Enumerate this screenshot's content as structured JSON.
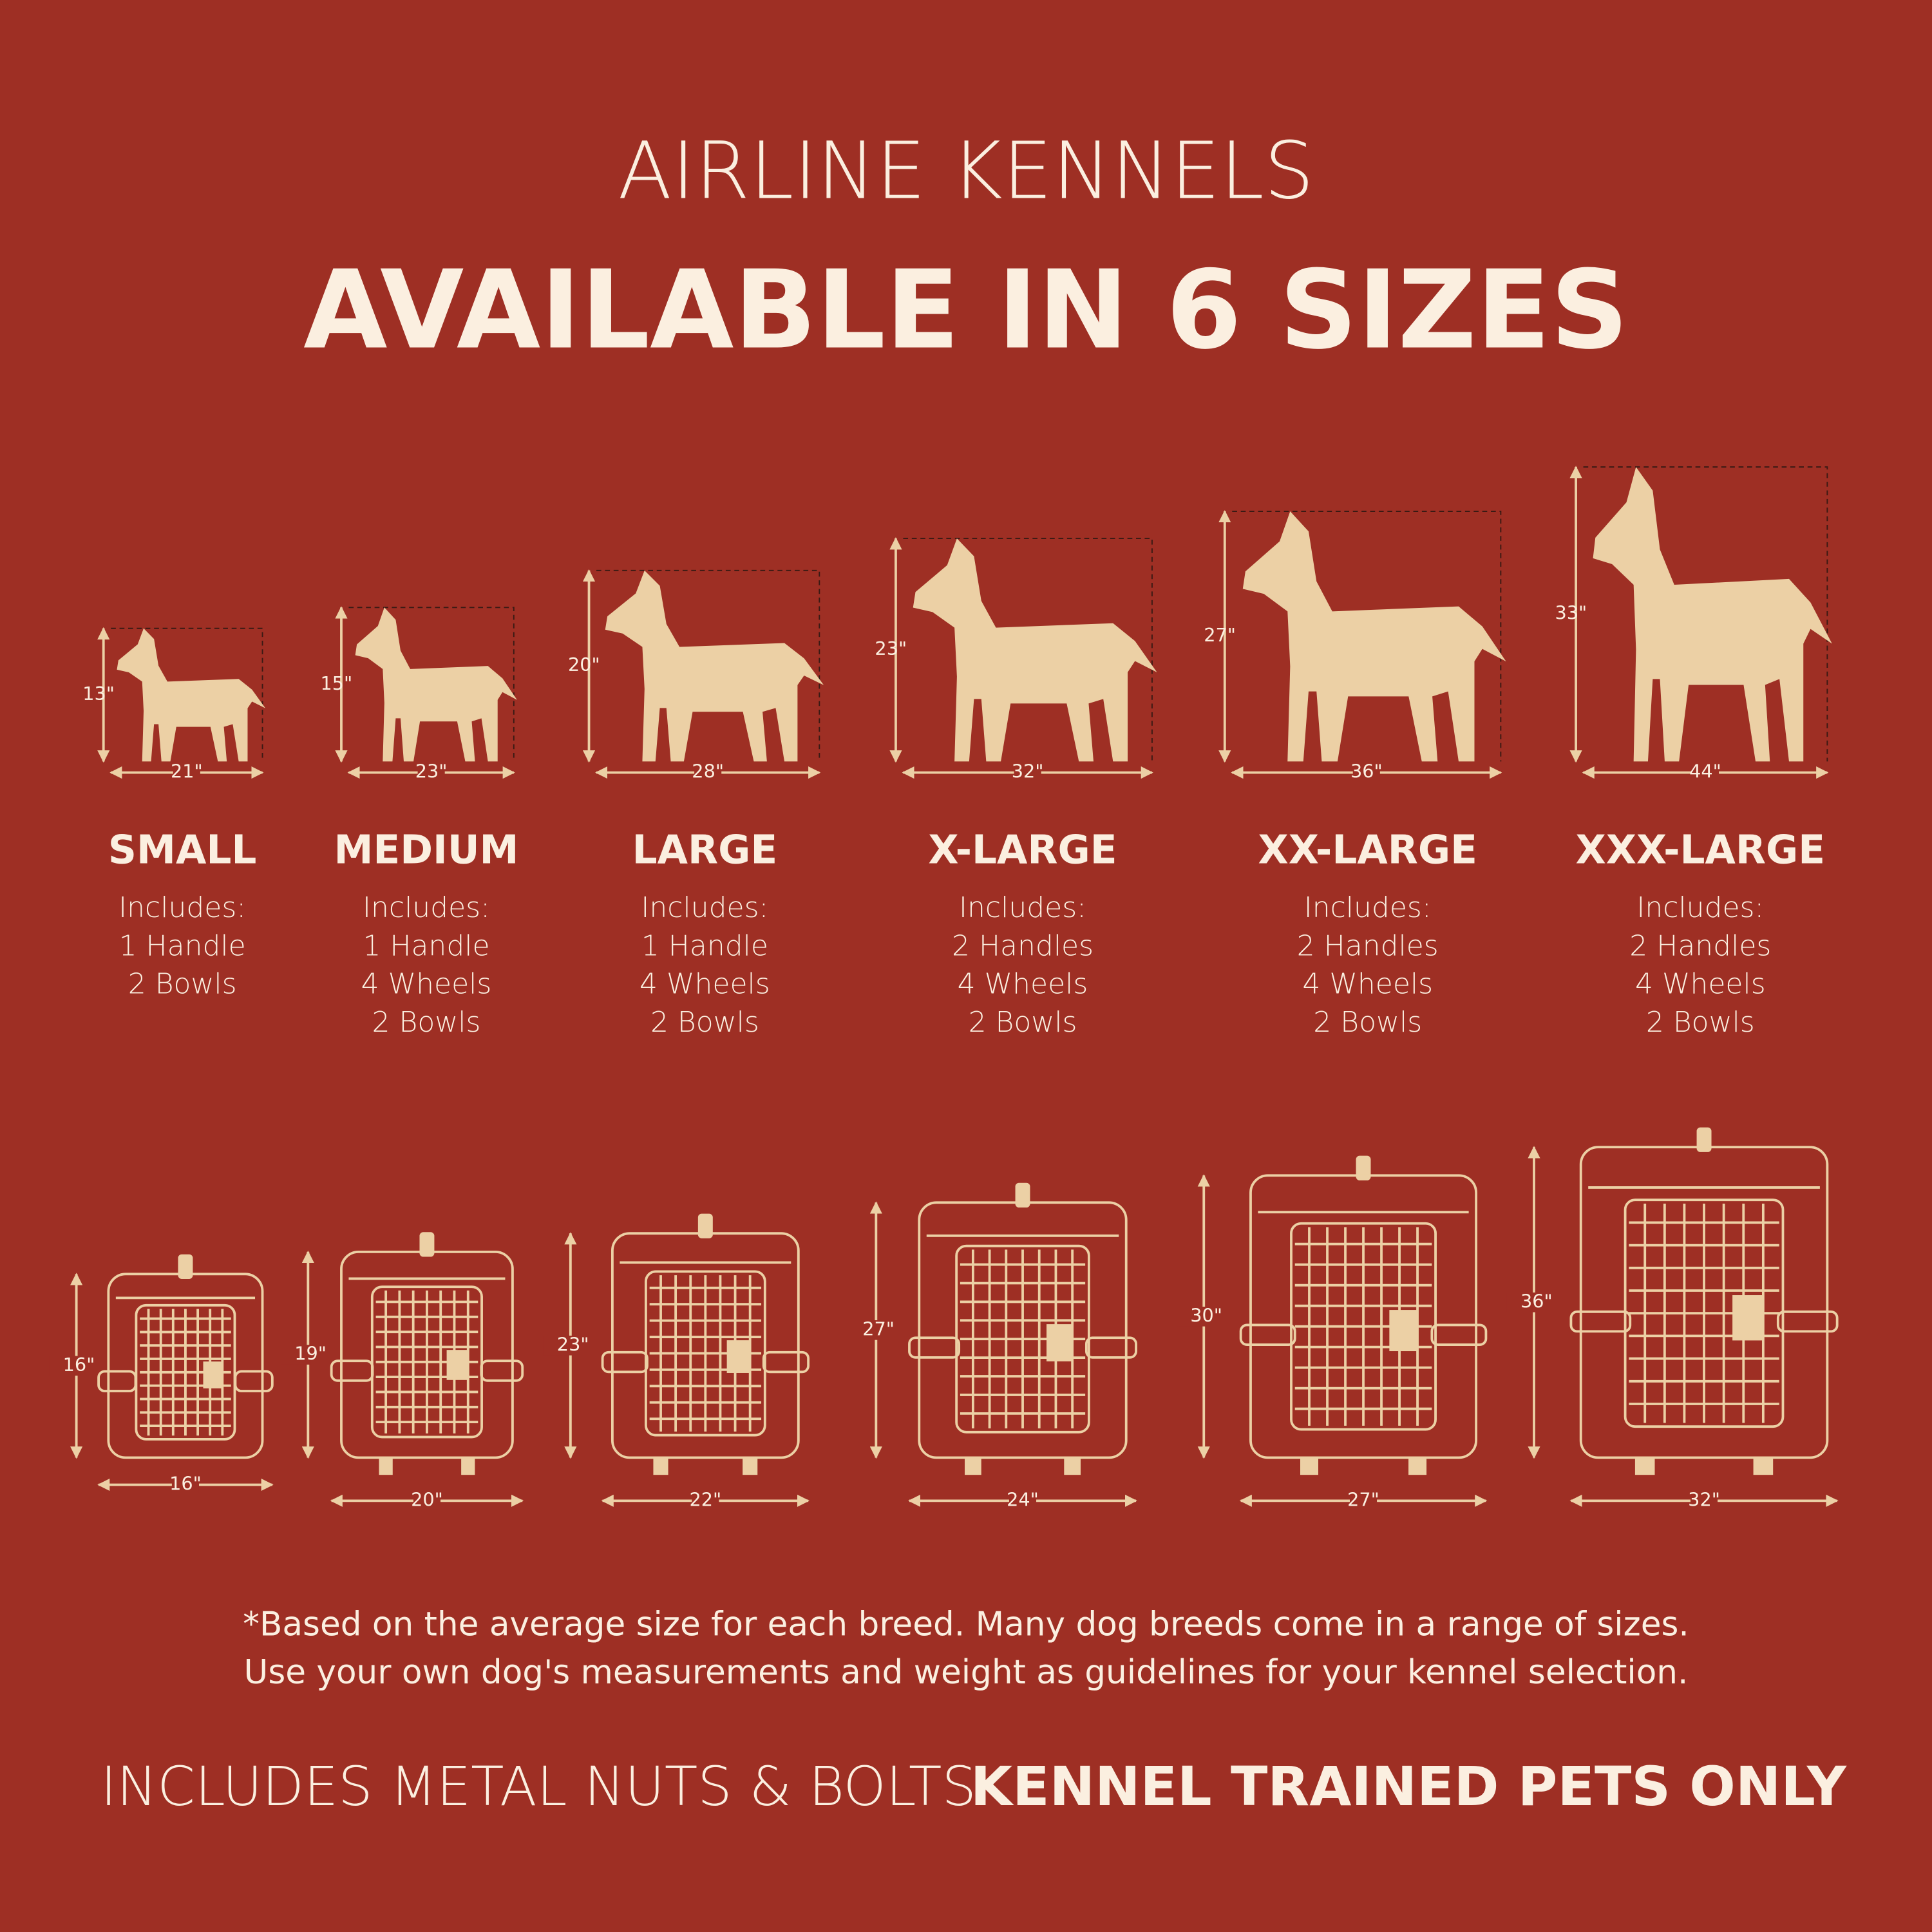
{
  "header": {
    "title": "AIRLINE KENNELS",
    "subtitle": "AVAILABLE IN 6 SIZES"
  },
  "sizes": [
    {
      "name": "SMALL",
      "includes_label": "Includes:",
      "items": [
        "1 Handle",
        "2 Bowls"
      ],
      "dog_height": "13\"",
      "dog_width": "21\"",
      "kennel_height": "16\"",
      "kennel_width": "16\""
    },
    {
      "name": "MEDIUM",
      "includes_label": "Includes:",
      "items": [
        "1 Handle",
        "4 Wheels",
        "2 Bowls"
      ],
      "dog_height": "15\"",
      "dog_width": "23\"",
      "kennel_height": "19\"",
      "kennel_width": "20\""
    },
    {
      "name": "LARGE",
      "includes_label": "Includes:",
      "items": [
        "1 Handle",
        "4 Wheels",
        "2 Bowls"
      ],
      "dog_height": "20\"",
      "dog_width": "28\"",
      "kennel_height": "23\"",
      "kennel_width": "22\""
    },
    {
      "name": "X-LARGE",
      "includes_label": "Includes:",
      "items": [
        "2 Handles",
        "4 Wheels",
        "2 Bowls"
      ],
      "dog_height": "23\"",
      "dog_width": "32\"",
      "kennel_height": "27\"",
      "kennel_width": "24\""
    },
    {
      "name": "XX-LARGE",
      "includes_label": "Includes:",
      "items": [
        "2 Handles",
        "4 Wheels",
        "2 Bowls"
      ],
      "dog_height": "27\"",
      "dog_width": "36\"",
      "kennel_height": "30\"",
      "kennel_width": "27\""
    },
    {
      "name": "XXX-LARGE",
      "includes_label": "Includes:",
      "items": [
        "2 Handles",
        "4 Wheels",
        "2 Bowls"
      ],
      "dog_height": "33\"",
      "dog_width": "44\"",
      "kennel_height": "36\"",
      "kennel_width": "32\""
    }
  ],
  "footnote": [
    "*Based on the average size for each breed. Many dog breeds come in a range of sizes.",
    "Use your own dog's measurements and weight as guidelines for your kennel selection."
  ],
  "footer": {
    "left": "INCLUDES METAL NUTS & BOLTS",
    "right": "KENNEL TRAINED PETS ONLY"
  }
}
